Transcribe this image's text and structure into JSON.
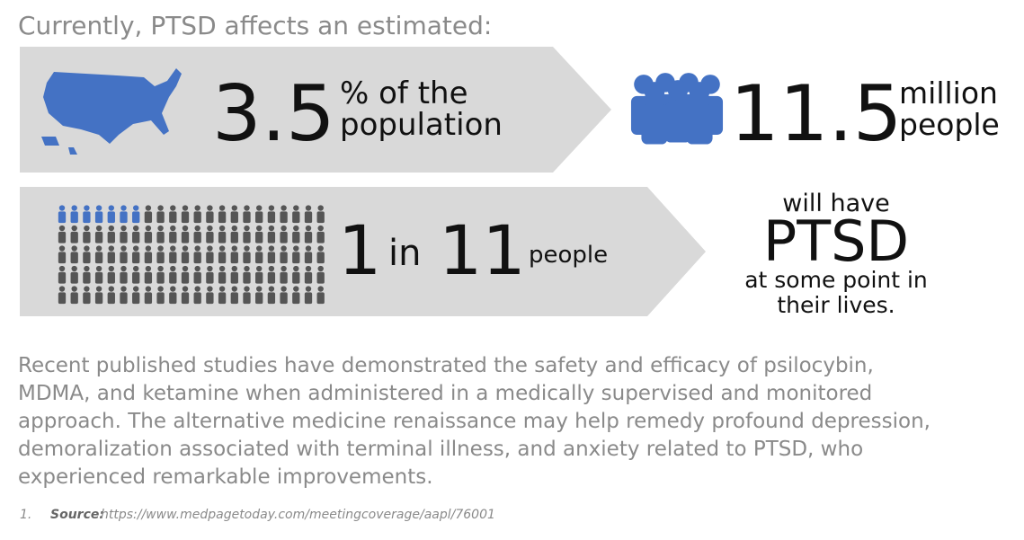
{
  "header": {
    "title": "Currently, PTSD affects an estimated:"
  },
  "stats": [
    {
      "value": "3.5",
      "unit_lines": [
        "% of the",
        "population"
      ]
    },
    {
      "value": "11.5",
      "unit_lines": [
        "million",
        "people"
      ]
    },
    {
      "parts": [
        "1",
        "in",
        "11",
        "people"
      ]
    }
  ],
  "callout": {
    "lines": [
      "will have",
      "PTSD",
      "at some point in",
      "their lives."
    ]
  },
  "body": {
    "lines": [
      "Recent published studies have demonstrated the safety and efficacy of psilocybin,",
      "MDMA, and ketamine when administered in a medically supervised and monitored",
      "approach. The alternative medicine renaissance may help remedy profound depression,",
      "demoralization associated with terminal illness, and anxiety related to PTSD, who",
      "experienced remarkable improvements."
    ]
  },
  "footnote": {
    "number": "1.",
    "label": "Source:",
    "url": "https://www.medpagetoday.com/meetingcoverage/aapl/76001"
  }
}
